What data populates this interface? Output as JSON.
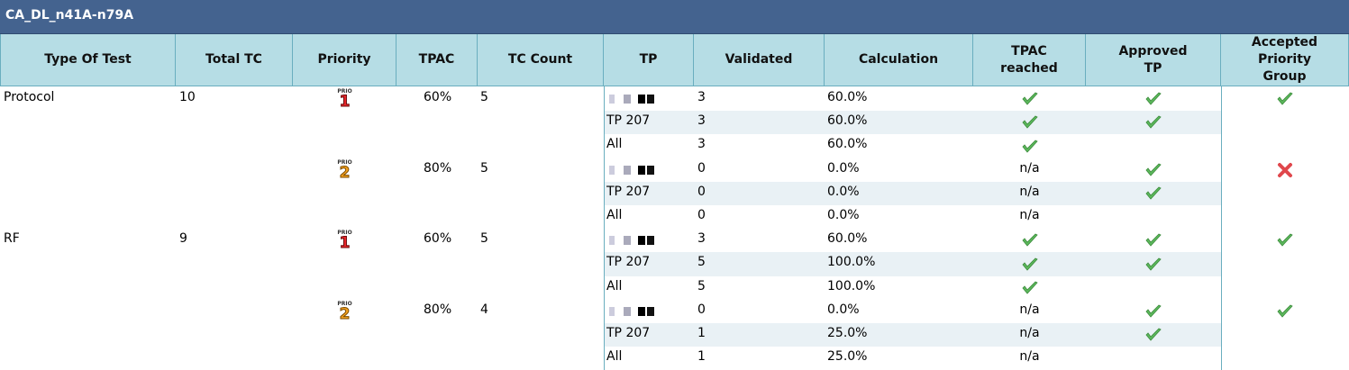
{
  "header": {
    "title": "CA_DL_n41A-n79A"
  },
  "table": {
    "columns": [
      "Type Of Test",
      "Total TC",
      "Priority",
      "TPAC",
      "TC Count",
      "TP",
      "Validated",
      "Calculation",
      "TPAC\nreached",
      "Approved\nTP",
      "Accepted\nPriority\nGroup"
    ],
    "priority_badge_label": "PRIO",
    "groups": [
      {
        "type": "Protocol",
        "total_tc": "10",
        "priorities": [
          {
            "priority": "1",
            "tpac": "60%",
            "tc_count": "5",
            "accepted": true,
            "rows": [
              {
                "validated": "3",
                "calculation": "60.0%",
                "tpac_reached": true,
                "approved_tp": true
              },
              {
                "tp": "TP 207",
                "validated": "3",
                "calculation": "60.0%",
                "tpac_reached": true,
                "approved_tp": true
              },
              {
                "tp": "All",
                "validated": "3",
                "calculation": "60.0%",
                "tpac_reached": true,
                "approved_tp": null
              }
            ]
          },
          {
            "priority": "2",
            "tpac": "80%",
            "tc_count": "5",
            "accepted": false,
            "rows": [
              {
                "validated": "0",
                "calculation": "0.0%",
                "tpac_reached": "n/a",
                "approved_tp": true
              },
              {
                "tp": "TP 207",
                "validated": "0",
                "calculation": "0.0%",
                "tpac_reached": "n/a",
                "approved_tp": true
              },
              {
                "tp": "All",
                "validated": "0",
                "calculation": "0.0%",
                "tpac_reached": "n/a",
                "approved_tp": null
              }
            ]
          }
        ]
      },
      {
        "type": "RF",
        "total_tc": "9",
        "priorities": [
          {
            "priority": "1",
            "tpac": "60%",
            "tc_count": "5",
            "accepted": true,
            "rows": [
              {
                "validated": "3",
                "calculation": "60.0%",
                "tpac_reached": true,
                "approved_tp": true
              },
              {
                "tp": "TP 207",
                "validated": "5",
                "calculation": "100.0%",
                "tpac_reached": true,
                "approved_tp": true
              },
              {
                "tp": "All",
                "validated": "5",
                "calculation": "100.0%",
                "tpac_reached": true,
                "approved_tp": null
              }
            ]
          },
          {
            "priority": "2",
            "tpac": "80%",
            "tc_count": "4",
            "accepted": true,
            "rows": [
              {
                "validated": "0",
                "calculation": "0.0%",
                "tpac_reached": "n/a",
                "approved_tp": true
              },
              {
                "tp": "TP 207",
                "validated": "1",
                "calculation": "25.0%",
                "tpac_reached": "n/a",
                "approved_tp": true
              },
              {
                "tp": "All",
                "validated": "1",
                "calculation": "25.0%",
                "tpac_reached": "n/a",
                "approved_tp": null
              }
            ]
          }
        ]
      }
    ]
  }
}
